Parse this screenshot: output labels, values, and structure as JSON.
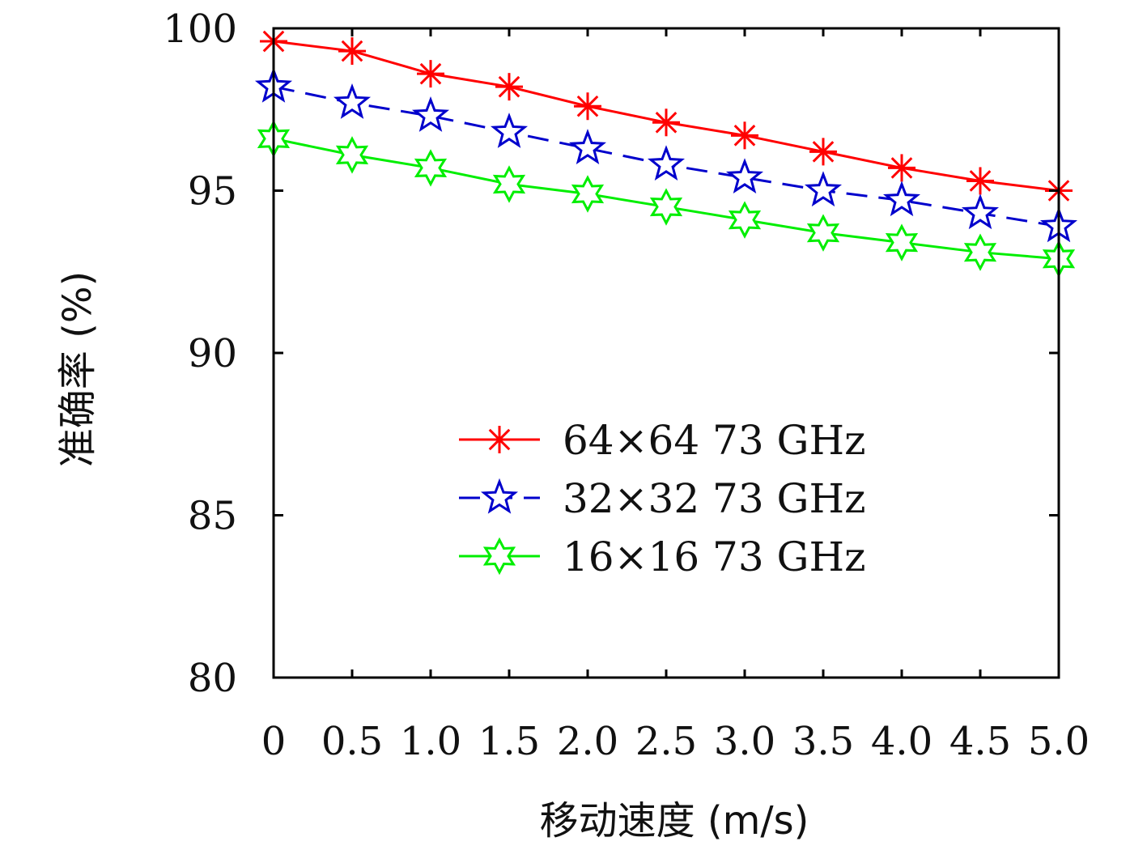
{
  "chart_data": {
    "type": "line",
    "title": "",
    "xlabel": "移动速度 (m/s)",
    "ylabel": "准确率 (%)",
    "x": [
      0,
      0.5,
      1.0,
      1.5,
      2.0,
      2.5,
      3.0,
      3.5,
      4.0,
      4.5,
      5.0
    ],
    "x_tick_labels": [
      "0",
      "0.5",
      "1.0",
      "1.5",
      "2.0",
      "2.5",
      "3.0",
      "3.5",
      "4.0",
      "4.5",
      "5.0"
    ],
    "xlim": [
      0,
      5.0
    ],
    "ylim": [
      80,
      100
    ],
    "y_ticks": [
      80,
      85,
      90,
      95,
      100
    ],
    "y_tick_labels": [
      "80",
      "85",
      "90",
      "95",
      "100"
    ],
    "grid": false,
    "legend_position": "center-right",
    "series": [
      {
        "name": "64×64 73 GHz",
        "color": "#ff0000",
        "line_style": "solid",
        "marker": "asterisk",
        "values": [
          99.6,
          99.3,
          98.6,
          98.2,
          97.6,
          97.1,
          96.7,
          96.2,
          95.7,
          95.3,
          95.0
        ]
      },
      {
        "name": "32×32 73 GHz",
        "color": "#0000cc",
        "line_style": "dashed",
        "marker": "five-point-star",
        "values": [
          98.2,
          97.7,
          97.3,
          96.8,
          96.3,
          95.8,
          95.4,
          95.0,
          94.7,
          94.3,
          93.9
        ]
      },
      {
        "name": "16×16 73 GHz",
        "color": "#00ee00",
        "line_style": "solid",
        "marker": "six-point-star",
        "values": [
          96.6,
          96.1,
          95.7,
          95.2,
          94.9,
          94.5,
          94.1,
          93.7,
          93.4,
          93.1,
          92.9
        ]
      }
    ]
  }
}
